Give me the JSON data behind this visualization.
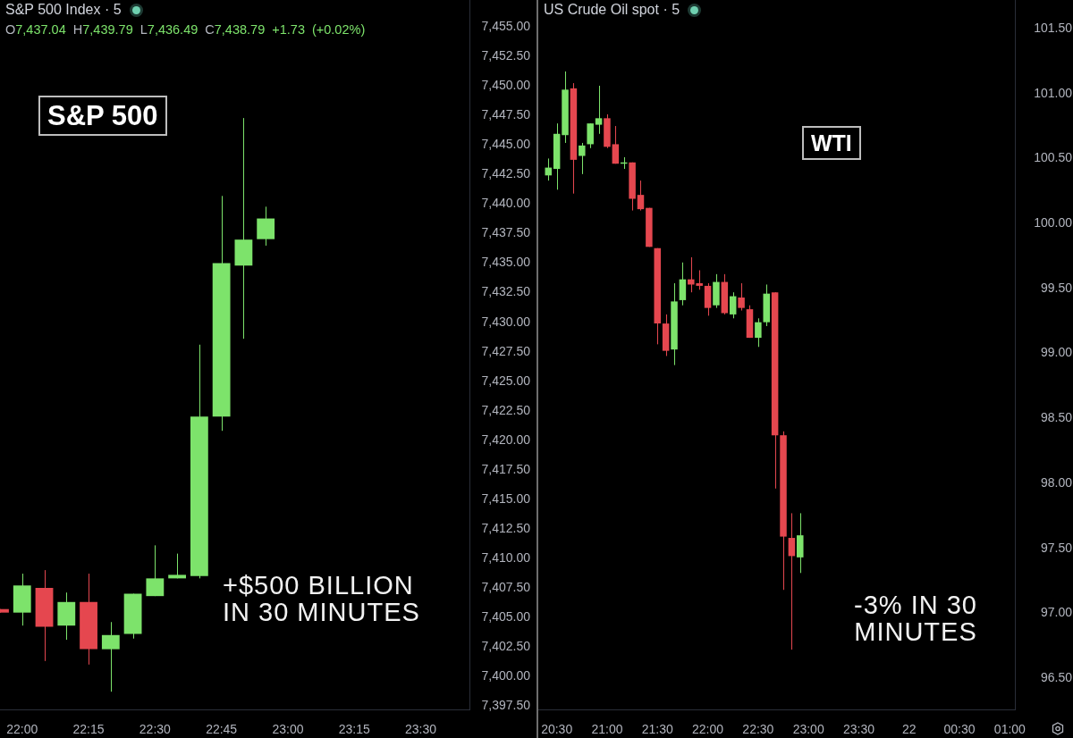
{
  "chart_data": [
    {
      "type": "candlestick",
      "title": "S&P 500 Index · 5",
      "subtitle": "O7,437.04 H7,439.79 L7,436.49 C7,438.79 +1.73 (+0.02%)",
      "annotations": [
        "S&P 500",
        "+$500 BILLION IN 30 MINUTES"
      ],
      "x": [
        "--03-21T21:55",
        "--03-21T22:00",
        "--03-21T22:05",
        "--03-21T22:10",
        "--03-21T22:15",
        "--03-21T22:20",
        "--03-21T22:25",
        "--03-21T22:30",
        "--03-21T22:35",
        "--03-21T22:40",
        "--03-21T22:45",
        "--03-21T22:50",
        "--03-21T22:55"
      ],
      "ohlc": [
        [
          7405.7,
          7405.7,
          7405.4,
          7405.4
        ],
        [
          7405.4,
          7408.7,
          7404.3,
          7407.7
        ],
        [
          7407.5,
          7409.0,
          7401.3,
          7404.2
        ],
        [
          7404.3,
          7407.1,
          7403.1,
          7406.3
        ],
        [
          7406.3,
          7408.7,
          7401.0,
          7402.3
        ],
        [
          7402.3,
          7404.6,
          7398.7,
          7403.5
        ],
        [
          7403.6,
          7407.0,
          7403.2,
          7407.0
        ],
        [
          7406.8,
          7411.1,
          7406.8,
          7408.3
        ],
        [
          7408.3,
          7410.4,
          7408.3,
          7408.6
        ],
        [
          7408.5,
          7428.1,
          7408.3,
          7422.0
        ],
        [
          7422.0,
          7440.7,
          7420.8,
          7435.0
        ],
        [
          7434.8,
          7447.3,
          7428.6,
          7437.0
        ],
        [
          7437.04,
          7439.79,
          7436.49,
          7438.79
        ]
      ],
      "colors": [
        "#e5474f",
        "#7de36b",
        "#e5474f",
        "#7de36b",
        "#e5474f",
        "#7de36b",
        "#7de36b",
        "#7de36b",
        "#7de36b",
        "#7de36b",
        "#7de36b",
        "#7de36b",
        "#7de36b"
      ],
      "xlim": [
        "--03-21T21:55",
        "--03-21T23:41"
      ],
      "xticks": [
        {
          "value": "--03-21T22:00",
          "label": "22:00"
        },
        {
          "value": "--03-21T22:15",
          "label": "22:15"
        },
        {
          "value": "--03-21T22:30",
          "label": "22:30"
        },
        {
          "value": "--03-21T22:45",
          "label": "22:45"
        },
        {
          "value": "--03-21T23:00",
          "label": "23:00"
        },
        {
          "value": "--03-21T23:15",
          "label": "23:15"
        },
        {
          "value": "--03-21T23:30",
          "label": "23:30"
        }
      ],
      "ylim": [
        7397.2,
        7457.3
      ],
      "yticks": [
        {
          "value": 7397.5,
          "label": "7,397.50"
        },
        {
          "value": 7400,
          "label": "7,400.00"
        },
        {
          "value": 7402.5,
          "label": "7,402.50"
        },
        {
          "value": 7405,
          "label": "7,405.00"
        },
        {
          "value": 7407.5,
          "label": "7,407.50"
        },
        {
          "value": 7410,
          "label": "7,410.00"
        },
        {
          "value": 7412.5,
          "label": "7,412.50"
        },
        {
          "value": 7415,
          "label": "7,415.00"
        },
        {
          "value": 7417.5,
          "label": "7,417.50"
        },
        {
          "value": 7420,
          "label": "7,420.00"
        },
        {
          "value": 7422.5,
          "label": "7,422.50"
        },
        {
          "value": 7425,
          "label": "7,425.00"
        },
        {
          "value": 7427.5,
          "label": "7,427.50"
        },
        {
          "value": 7430,
          "label": "7,430.00"
        },
        {
          "value": 7432.5,
          "label": "7,432.50"
        },
        {
          "value": 7435,
          "label": "7,435.00"
        },
        {
          "value": 7437.5,
          "label": "7,437.50"
        },
        {
          "value": 7440,
          "label": "7,440.00"
        },
        {
          "value": 7442.5,
          "label": "7,442.50"
        },
        {
          "value": 7445,
          "label": "7,445.00"
        },
        {
          "value": 7447.5,
          "label": "7,447.50"
        },
        {
          "value": 7450,
          "label": "7,450.00"
        },
        {
          "value": 7452.5,
          "label": "7,452.50"
        },
        {
          "value": 7455,
          "label": "7,455.00"
        }
      ]
    },
    {
      "type": "candlestick",
      "title": "US Crude Oil spot · 5",
      "annotations": [
        "WTI",
        "-3% IN 30 MINUTES"
      ],
      "x": [
        "--03-21T20:25",
        "--03-21T20:30",
        "--03-21T20:35",
        "--03-21T20:40",
        "--03-21T20:45",
        "--03-21T20:50",
        "--03-21T20:55",
        "--03-21T21:00",
        "--03-21T21:05",
        "--03-21T21:10",
        "--03-21T21:15",
        "--03-21T21:20",
        "--03-21T21:25",
        "--03-21T21:30",
        "--03-21T21:35",
        "--03-21T21:40",
        "--03-21T21:45",
        "--03-21T21:50",
        "--03-21T21:55",
        "--03-21T22:00",
        "--03-21T22:05",
        "--03-21T22:10",
        "--03-21T22:15",
        "--03-21T22:20",
        "--03-21T22:25",
        "--03-21T22:30",
        "--03-21T22:35",
        "--03-21T22:40",
        "--03-21T22:45",
        "--03-21T22:50",
        "--03-21T22:55"
      ],
      "ohlc": [
        [
          100.37,
          100.5,
          100.33,
          100.43
        ],
        [
          100.42,
          100.77,
          100.26,
          100.69
        ],
        [
          100.68,
          101.17,
          100.62,
          101.03
        ],
        [
          101.04,
          101.08,
          100.23,
          100.49
        ],
        [
          100.52,
          100.62,
          100.38,
          100.6
        ],
        [
          100.61,
          100.77,
          100.58,
          100.77
        ],
        [
          100.76,
          101.06,
          100.69,
          100.81
        ],
        [
          100.81,
          100.84,
          100.58,
          100.59
        ],
        [
          100.61,
          100.75,
          100.46,
          100.46
        ],
        [
          100.46,
          100.51,
          100.42,
          100.47
        ],
        [
          100.47,
          100.47,
          100.1,
          100.19
        ],
        [
          100.22,
          100.33,
          100.1,
          100.11
        ],
        [
          100.12,
          100.12,
          99.82,
          99.82
        ],
        [
          99.81,
          99.81,
          99.07,
          99.23
        ],
        [
          99.23,
          99.3,
          98.98,
          99.02
        ],
        [
          99.03,
          99.54,
          98.91,
          99.4
        ],
        [
          99.41,
          99.7,
          99.37,
          99.57
        ],
        [
          99.57,
          99.74,
          99.47,
          99.53
        ],
        [
          99.54,
          99.64,
          99.49,
          99.52
        ],
        [
          99.52,
          99.54,
          99.29,
          99.35
        ],
        [
          99.37,
          99.61,
          99.35,
          99.55
        ],
        [
          99.55,
          99.61,
          99.3,
          99.31
        ],
        [
          99.3,
          99.47,
          99.27,
          99.44
        ],
        [
          99.43,
          99.54,
          99.33,
          99.35
        ],
        [
          99.34,
          99.37,
          99.12,
          99.12
        ],
        [
          99.12,
          99.27,
          99.05,
          99.24
        ],
        [
          99.24,
          99.53,
          99.21,
          99.46
        ],
        [
          99.47,
          99.47,
          97.96,
          98.37
        ],
        [
          98.37,
          98.4,
          97.18,
          97.59
        ],
        [
          97.58,
          97.77,
          96.72,
          97.44
        ],
        [
          97.43,
          97.77,
          97.31,
          97.6
        ]
      ],
      "colors": [
        "#7de36b",
        "#7de36b",
        "#7de36b",
        "#e5474f",
        "#7de36b",
        "#7de36b",
        "#7de36b",
        "#e5474f",
        "#e5474f",
        "#7de36b",
        "#e5474f",
        "#e5474f",
        "#e5474f",
        "#e5474f",
        "#e5474f",
        "#7de36b",
        "#7de36b",
        "#e5474f",
        "#e5474f",
        "#e5474f",
        "#7de36b",
        "#e5474f",
        "#7de36b",
        "#e5474f",
        "#e5474f",
        "#7de36b",
        "#7de36b",
        "#e5474f",
        "#e5474f",
        "#e5474f",
        "#7de36b"
      ],
      "xlim": [
        "--03-21T20:19",
        "--03-22T01:03"
      ],
      "xticks": [
        {
          "value": "--03-21T20:30",
          "label": "20:30"
        },
        {
          "value": "--03-21T21:00",
          "label": "21:00"
        },
        {
          "value": "--03-21T21:30",
          "label": "21:30"
        },
        {
          "value": "--03-21T22:00",
          "label": "22:00"
        },
        {
          "value": "--03-21T22:30",
          "label": "22:30"
        },
        {
          "value": "--03-21T23:00",
          "label": "23:00"
        },
        {
          "value": "--03-21T23:30",
          "label": "23:30"
        },
        {
          "value": "--03-22T00:00",
          "label": "22"
        },
        {
          "value": "--03-22T00:30",
          "label": "00:30"
        },
        {
          "value": "--03-22T01:00",
          "label": "01:00"
        }
      ],
      "ylim": [
        96.26,
        101.72
      ],
      "yticks": [
        {
          "value": 96.5,
          "label": "96.50"
        },
        {
          "value": 97,
          "label": "97.00"
        },
        {
          "value": 97.5,
          "label": "97.50"
        },
        {
          "value": 98,
          "label": "98.00"
        },
        {
          "value": 98.5,
          "label": "98.50"
        },
        {
          "value": 99,
          "label": "99.00"
        },
        {
          "value": 99.5,
          "label": "99.50"
        },
        {
          "value": 100,
          "label": "100.00"
        },
        {
          "value": 100.5,
          "label": "100.50"
        },
        {
          "value": 101,
          "label": "101.00"
        },
        {
          "value": 101.5,
          "label": "101.50"
        }
      ]
    }
  ]
}
